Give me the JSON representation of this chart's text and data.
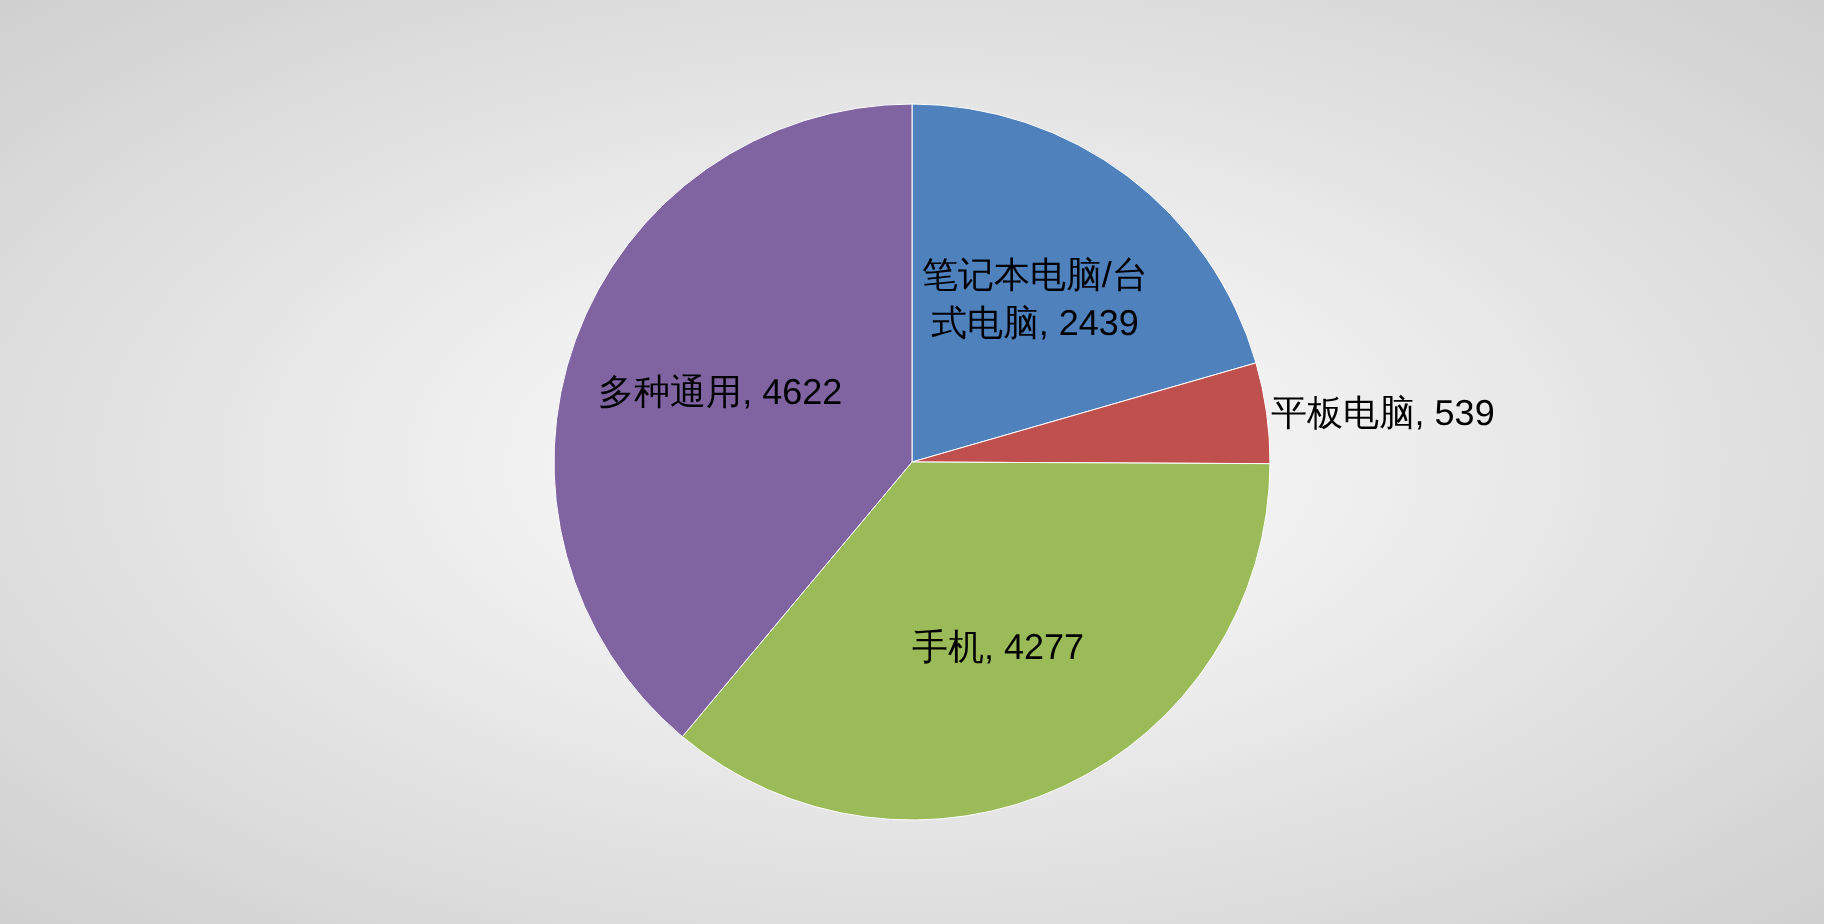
{
  "chart_data": {
    "type": "pie",
    "categories": [
      "笔记本电脑/台式电脑",
      "平板电脑",
      "手机",
      "多种通用"
    ],
    "values": [
      2439,
      539,
      4277,
      4622
    ],
    "colors": [
      "#4f81bd",
      "#c0504d",
      "#9bbb59",
      "#8064a2"
    ],
    "value_labels": [
      ", 2439",
      ", 539",
      ", 4277",
      ", 4622"
    ],
    "legend": false
  }
}
